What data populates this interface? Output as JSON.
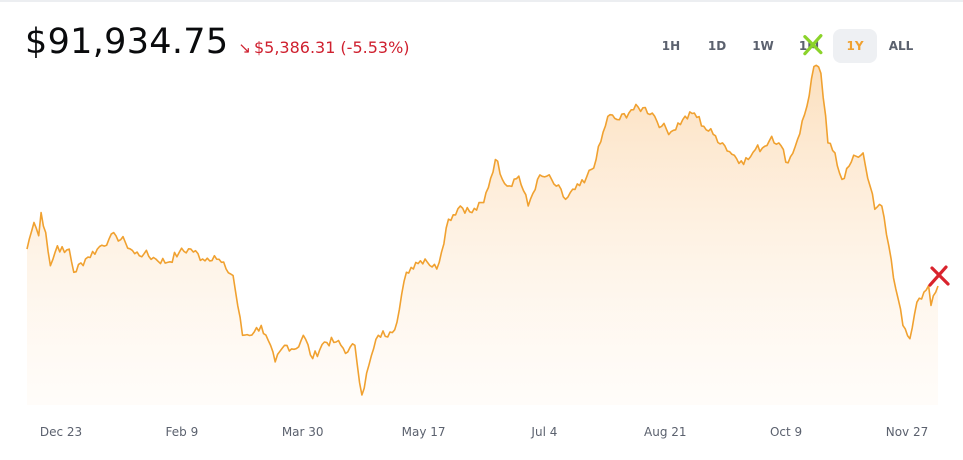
{
  "header": {
    "price": "$91,934.75",
    "change_arrow": "↘",
    "change_value": "$5,386.31",
    "change_pct": "(-5.53%)"
  },
  "ranges": [
    {
      "label": "1H",
      "active": false
    },
    {
      "label": "1D",
      "active": false
    },
    {
      "label": "1W",
      "active": false
    },
    {
      "label": "1M",
      "active": false
    },
    {
      "label": "1Y",
      "active": true
    },
    {
      "label": "ALL",
      "active": false
    }
  ],
  "colors": {
    "line": "#f0a130",
    "down": "#cf202f",
    "high_marker": "#8bd32a",
    "low_marker": "#d9232d"
  },
  "chart_data": {
    "type": "area",
    "x_ticks": [
      "Dec 23",
      "Feb 9",
      "Mar 30",
      "May 17",
      "Jul 4",
      "Aug 21",
      "Oct 9",
      "Nov 27"
    ],
    "anchors": [
      [
        0,
        97500
      ],
      [
        1,
        99000
      ],
      [
        3,
        101500
      ],
      [
        5,
        99500
      ],
      [
        6,
        103000
      ],
      [
        8,
        100000
      ],
      [
        10,
        95000
      ],
      [
        13,
        98000
      ],
      [
        16,
        97000
      ],
      [
        18,
        97500
      ],
      [
        20,
        94000
      ],
      [
        25,
        96000
      ],
      [
        30,
        97500
      ],
      [
        35,
        99000
      ],
      [
        38,
        99500
      ],
      [
        42,
        98500
      ],
      [
        46,
        96800
      ],
      [
        50,
        96800
      ],
      [
        55,
        96000
      ],
      [
        60,
        95500
      ],
      [
        65,
        97000
      ],
      [
        70,
        97500
      ],
      [
        75,
        96000
      ],
      [
        80,
        96500
      ],
      [
        85,
        94500
      ],
      [
        88,
        93500
      ],
      [
        92,
        84500
      ],
      [
        97,
        85000
      ],
      [
        100,
        86000
      ],
      [
        106,
        80500
      ],
      [
        110,
        83000
      ],
      [
        115,
        82500
      ],
      [
        118,
        84500
      ],
      [
        122,
        81000
      ],
      [
        127,
        83500
      ],
      [
        132,
        83500
      ],
      [
        137,
        82000
      ],
      [
        140,
        83000
      ],
      [
        143,
        75500
      ],
      [
        146,
        80000
      ],
      [
        150,
        84500
      ],
      [
        155,
        85000
      ],
      [
        158,
        86500
      ],
      [
        162,
        94000
      ],
      [
        166,
        95500
      ],
      [
        170,
        96000
      ],
      [
        175,
        94500
      ],
      [
        180,
        102000
      ],
      [
        185,
        104000
      ],
      [
        190,
        103000
      ],
      [
        195,
        104500
      ],
      [
        200,
        111000
      ],
      [
        205,
        107000
      ],
      [
        210,
        108500
      ],
      [
        214,
        104000
      ],
      [
        218,
        108000
      ],
      [
        222,
        108500
      ],
      [
        226,
        107000
      ],
      [
        230,
        105000
      ],
      [
        234,
        106500
      ],
      [
        238,
        107500
      ],
      [
        243,
        111000
      ],
      [
        248,
        117500
      ],
      [
        253,
        117000
      ],
      [
        258,
        118500
      ],
      [
        263,
        118800
      ],
      [
        267,
        118000
      ],
      [
        271,
        116000
      ],
      [
        275,
        115200
      ],
      [
        280,
        117000
      ],
      [
        285,
        118000
      ],
      [
        289,
        116000
      ],
      [
        293,
        114800
      ],
      [
        297,
        113500
      ],
      [
        300,
        112200
      ],
      [
        305,
        110800
      ],
      [
        308,
        111000
      ],
      [
        311,
        112500
      ],
      [
        315,
        113000
      ],
      [
        318,
        114500
      ],
      [
        321,
        113500
      ],
      [
        325,
        110500
      ],
      [
        329,
        114000
      ],
      [
        333,
        119000
      ],
      [
        336,
        125000
      ],
      [
        339,
        124000
      ],
      [
        342,
        113500
      ],
      [
        345,
        112000
      ],
      [
        348,
        108000
      ],
      [
        351,
        110000
      ],
      [
        354,
        111500
      ],
      [
        357,
        112000
      ],
      [
        360,
        107000
      ],
      [
        362,
        103500
      ],
      [
        365,
        104000
      ],
      [
        368,
        98000
      ],
      [
        371,
        91500
      ],
      [
        374,
        86000
      ],
      [
        377,
        84000
      ],
      [
        380,
        89500
      ],
      [
        383,
        91000
      ],
      [
        385,
        92000
      ],
      [
        386,
        89000
      ],
      [
        388,
        91000
      ],
      [
        389,
        91934.75
      ]
    ],
    "y_min": 74000,
    "y_max": 126000,
    "high_marker_index": 336,
    "last_marker": true
  }
}
